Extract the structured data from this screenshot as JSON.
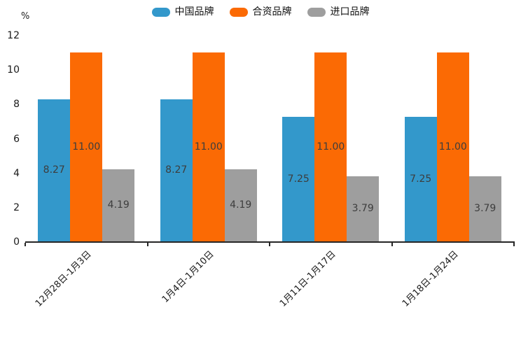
{
  "chart_data": {
    "type": "bar",
    "categories": [
      "12月28日-1月3日",
      "1月4日-1月10日",
      "1月11日-1月17日",
      "1月18日-1月24日"
    ],
    "series": [
      {
        "id": "china-brand",
        "name": "中国品牌",
        "color": "#3398CB",
        "values": [
          8.27,
          8.27,
          7.25,
          7.25
        ]
      },
      {
        "id": "joint-venture-brand",
        "name": "合资品牌",
        "color": "#FB6A04",
        "values": [
          11.0,
          11.0,
          11.0,
          11.0
        ]
      },
      {
        "id": "import-brand",
        "name": "进口品牌",
        "color": "#9E9E9E",
        "values": [
          4.19,
          4.19,
          3.79,
          3.79
        ]
      }
    ],
    "ylabel": "%",
    "ylim": [
      0,
      12
    ],
    "yticks": [
      0,
      2,
      4,
      6,
      8,
      10,
      12
    ],
    "value_label_decimals": 2,
    "legend_position": "top",
    "grid": false
  }
}
